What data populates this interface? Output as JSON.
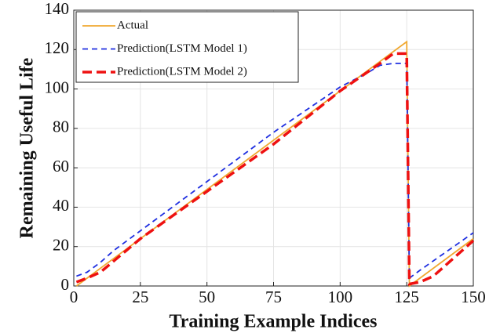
{
  "chart_data": {
    "type": "line",
    "xlabel": "Training Example Indices",
    "ylabel": "Remaining Useful Life",
    "xlim": [
      0,
      150
    ],
    "xticks": [
      0,
      25,
      50,
      75,
      100,
      125,
      150
    ],
    "ylim": [
      0,
      140
    ],
    "yticks": [
      0,
      20,
      40,
      60,
      80,
      100,
      120,
      140
    ],
    "grid": true,
    "legend": "upper left",
    "series": [
      {
        "name": "Actual",
        "color": "#f0a830",
        "linestyle": "solid",
        "linewidth": 1.8,
        "x": [
          1,
          125,
          126,
          150
        ],
        "values": [
          0,
          124,
          0,
          24
        ]
      },
      {
        "name": "Prediction(LSTM Model 1)",
        "color": "#1f2fe0",
        "linestyle": "dashed",
        "linewidth": 1.8,
        "x": [
          1,
          5,
          10,
          15,
          25,
          50,
          75,
          100,
          110,
          115,
          120,
          125,
          126,
          130,
          150
        ],
        "values": [
          5,
          7,
          12,
          18,
          28,
          53,
          78,
          101,
          108,
          112,
          113,
          113,
          4,
          8,
          27
        ]
      },
      {
        "name": "Prediction(LSTM Model 2)",
        "color": "#ee1111",
        "linestyle": "dashed",
        "linewidth": 3.5,
        "x": [
          1,
          5,
          10,
          25,
          50,
          75,
          100,
          115,
          120,
          125,
          126,
          130,
          135,
          150
        ],
        "values": [
          2,
          4,
          7,
          24,
          48,
          72,
          99,
          113,
          118,
          118,
          1,
          2,
          5,
          23
        ]
      }
    ]
  }
}
